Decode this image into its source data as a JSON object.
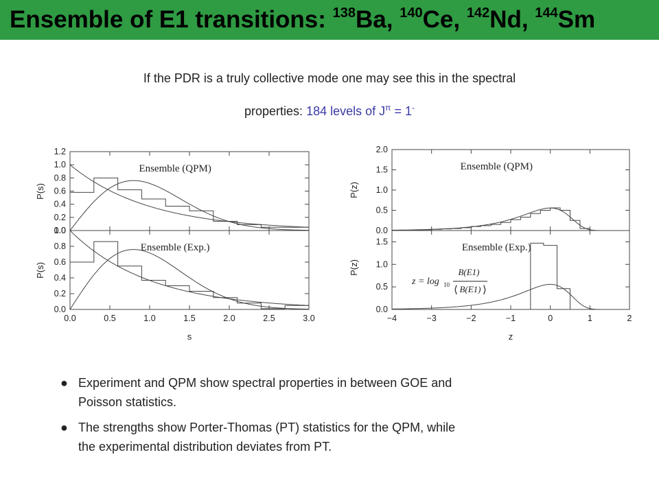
{
  "title": {
    "prefix": "Ensemble of E1 transitions: ",
    "nuclei": [
      {
        "mass": "138",
        "symbol": "Ba",
        "sep": ", "
      },
      {
        "mass": "140",
        "symbol": "Ce",
        "sep": ", "
      },
      {
        "mass": "142",
        "symbol": "Nd",
        "sep": ", "
      },
      {
        "mass": "144",
        "symbol": "Sm",
        "sep": ""
      }
    ]
  },
  "intro": {
    "line1": "If the PDR is a truly collective mode one may see this in the spectral",
    "line2_prefix": "properties:",
    "highlight_text": "184 levels of J",
    "highlight_pi": "π",
    "highlight_eq": " = 1",
    "highlight_sup": "-",
    "highlight_color": "#3a3aa6"
  },
  "bullets": [
    {
      "symbol": "●",
      "lines": [
        "Experiment and QPM show spectral properties in between GOE and",
        "Poisson statistics."
      ]
    },
    {
      "symbol": "●",
      "lines": [
        "The strengths show Porter-Thomas (PT) statistics for the QPM, while",
        "the experimental distribution deviates from PT."
      ]
    }
  ],
  "chart_data": [
    {
      "type": "histogram",
      "panel": "left-top",
      "label": "Ensemble (QPM)",
      "ylabel": "P(s)",
      "xlabel": "",
      "xlim": [
        0,
        3
      ],
      "ylim": [
        0,
        1.2
      ],
      "xticks": [],
      "yticks": [
        "0.0",
        "0.2",
        "0.4",
        "0.6",
        "0.8",
        "1.0",
        "1.2"
      ],
      "bin_edges": [
        0,
        0.3,
        0.6,
        0.9,
        1.2,
        1.5,
        1.8,
        2.1,
        2.4,
        2.7,
        3.0
      ],
      "values": [
        0.58,
        0.8,
        0.62,
        0.48,
        0.37,
        0.3,
        0.14,
        0.09,
        0.05,
        0.05
      ],
      "curves": [
        "poisson",
        "wigner"
      ]
    },
    {
      "type": "histogram",
      "panel": "left-bottom",
      "label": "Ensemble (Exp.)",
      "ylabel": "P(s)",
      "xlabel": "s",
      "xlim": [
        0,
        3
      ],
      "ylim": [
        0,
        1.0
      ],
      "xticks": [
        "0.0",
        "0.5",
        "1.0",
        "1.5",
        "2.0",
        "2.5",
        "3.0"
      ],
      "yticks": [
        "0.0",
        "0.2",
        "0.4",
        "0.6",
        "0.8",
        "1.0"
      ],
      "bin_edges": [
        0,
        0.3,
        0.6,
        0.9,
        1.2,
        1.5,
        1.8,
        2.1,
        2.4,
        2.7,
        3.0
      ],
      "values": [
        0.6,
        0.86,
        0.55,
        0.37,
        0.3,
        0.23,
        0.15,
        0.08,
        0.01,
        0.05
      ],
      "curves": [
        "poisson",
        "wigner"
      ]
    },
    {
      "type": "histogram",
      "panel": "right-top",
      "label": "Ensemble (QPM)",
      "ylabel": "P(z)",
      "xlabel": "",
      "xlim": [
        -4,
        2
      ],
      "ylim": [
        0,
        2.0
      ],
      "xticks": [],
      "yticks": [
        "0.0",
        "0.5",
        "1.0",
        "1.5",
        "2.0"
      ],
      "bin_edges": [
        -4,
        -3.75,
        -3.5,
        -3.25,
        -3,
        -2.75,
        -2.5,
        -2.25,
        -2,
        -1.75,
        -1.5,
        -1.25,
        -1,
        -0.75,
        -0.5,
        -0.25,
        0,
        0.25,
        0.5,
        0.75,
        1,
        1.25,
        1.5,
        1.75,
        2
      ],
      "values": [
        0,
        0,
        0.01,
        0.02,
        0.03,
        0.04,
        0.05,
        0.07,
        0.1,
        0.12,
        0.15,
        0.2,
        0.27,
        0.33,
        0.42,
        0.5,
        0.56,
        0.5,
        0.25,
        0.05,
        0,
        0,
        0,
        0
      ],
      "curves": [
        "porter-thomas"
      ]
    },
    {
      "type": "histogram",
      "panel": "right-bottom",
      "label": "Ensemble (Exp.)",
      "ylabel": "P(z)",
      "xlabel": "z",
      "xlim": [
        -4,
        2
      ],
      "ylim": [
        0,
        1.75
      ],
      "xticks": [
        "−4",
        "−3",
        "−2",
        "−1",
        "0",
        "1",
        "2"
      ],
      "yticks": [
        "0.0",
        "0.5",
        "1.0",
        "1.5"
      ],
      "bin_edges": [
        -0.5,
        -0.17,
        0.17,
        0.5
      ],
      "values": [
        1.47,
        1.42,
        0.46
      ],
      "curves": [
        "porter-thomas"
      ],
      "formula": "z = log10 B(E1) / ⟨B(E1)⟩"
    }
  ],
  "formula": {
    "lhs": "z = log",
    "sub": "10",
    "numerator": "B(E1)",
    "denominator": "B(E1)"
  }
}
